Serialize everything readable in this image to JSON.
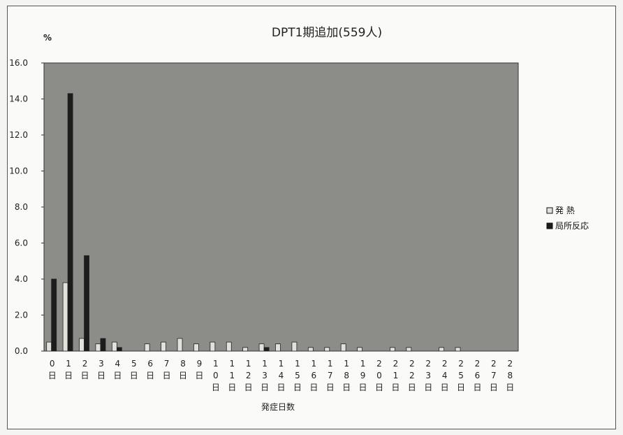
{
  "chart_data": {
    "type": "bar",
    "title": "DPT1期追加(559人)",
    "ylabel": "%",
    "xlabel": "発症日数",
    "ylim": [
      0,
      16
    ],
    "yticks": [
      "0.0",
      "2.0",
      "4.0",
      "6.0",
      "8.0",
      "10.0",
      "12.0",
      "14.0",
      "16.0"
    ],
    "categories": [
      "0日",
      "1日",
      "2日",
      "3日",
      "4日",
      "5日",
      "6日",
      "7日",
      "8日",
      "9日",
      "10日",
      "11日",
      "12日",
      "13日",
      "14日",
      "15日",
      "16日",
      "17日",
      "18日",
      "19日",
      "20日",
      "21日",
      "22日",
      "23日",
      "24日",
      "25日",
      "26日",
      "27日",
      "28日"
    ],
    "category_digits": [
      [
        "0"
      ],
      [
        "1"
      ],
      [
        "2"
      ],
      [
        "3"
      ],
      [
        "4"
      ],
      [
        "5"
      ],
      [
        "6"
      ],
      [
        "7"
      ],
      [
        "8"
      ],
      [
        "9"
      ],
      [
        "1",
        "0"
      ],
      [
        "1",
        "1"
      ],
      [
        "1",
        "2"
      ],
      [
        "1",
        "3"
      ],
      [
        "1",
        "4"
      ],
      [
        "1",
        "5"
      ],
      [
        "1",
        "6"
      ],
      [
        "1",
        "7"
      ],
      [
        "1",
        "8"
      ],
      [
        "1",
        "9"
      ],
      [
        "2",
        "0"
      ],
      [
        "2",
        "1"
      ],
      [
        "2",
        "2"
      ],
      [
        "2",
        "3"
      ],
      [
        "2",
        "4"
      ],
      [
        "2",
        "5"
      ],
      [
        "2",
        "6"
      ],
      [
        "2",
        "7"
      ],
      [
        "2",
        "8"
      ]
    ],
    "day_suffix": "日",
    "series": [
      {
        "name": "発 熱",
        "color": "#e2e2dc",
        "values": [
          0.5,
          3.8,
          0.7,
          0.4,
          0.5,
          0.0,
          0.4,
          0.5,
          0.7,
          0.4,
          0.5,
          0.5,
          0.2,
          0.4,
          0.4,
          0.5,
          0.2,
          0.2,
          0.4,
          0.2,
          0.0,
          0.2,
          0.2,
          0.0,
          0.2,
          0.2,
          0.0,
          0.0,
          0.0
        ]
      },
      {
        "name": "局所反応",
        "color": "#1c1c1c",
        "values": [
          4.0,
          14.3,
          5.3,
          0.7,
          0.2,
          0.0,
          0.0,
          0.0,
          0.0,
          0.0,
          0.0,
          0.0,
          0.0,
          0.2,
          0.0,
          0.0,
          0.0,
          0.0,
          0.0,
          0.0,
          0.0,
          0.0,
          0.0,
          0.0,
          0.0,
          0.0,
          0.0,
          0.0,
          0.0
        ]
      }
    ],
    "plot_background": "#8c8c88",
    "grid": false,
    "legend_position": "right"
  }
}
